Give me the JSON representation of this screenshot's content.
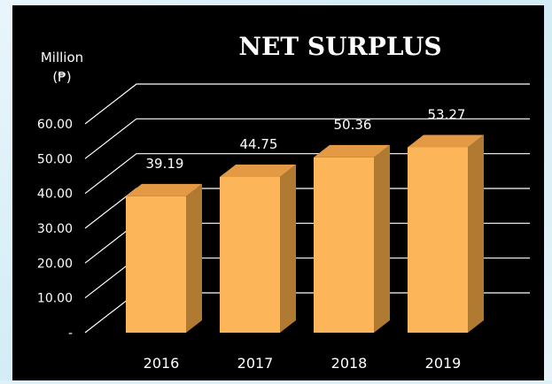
{
  "chart_data": {
    "type": "bar",
    "title": "NET SURPLUS",
    "ylabel": "Million",
    "yunit": "(₱)",
    "categories": [
      "2016",
      "2017",
      "2018",
      "2019"
    ],
    "values": [
      39.19,
      44.75,
      50.36,
      53.27
    ],
    "data_labels": [
      "39.19",
      "44.75",
      "50.36",
      "53.27"
    ],
    "ylim": [
      0,
      60
    ],
    "yticks": [
      0,
      10,
      20,
      30,
      40,
      50,
      60
    ],
    "ytick_labels": [
      "-",
      "10.00",
      "20.00",
      "30.00",
      "40.00",
      "50.00",
      "60.00"
    ],
    "grid": true,
    "three_d": true,
    "colors": {
      "background": "#000000",
      "bar_front": "#FDB55A",
      "bar_side": "#B07A33",
      "bar_top": "#E49A45",
      "grid": "#ffffff",
      "text": "#ffffff"
    }
  }
}
